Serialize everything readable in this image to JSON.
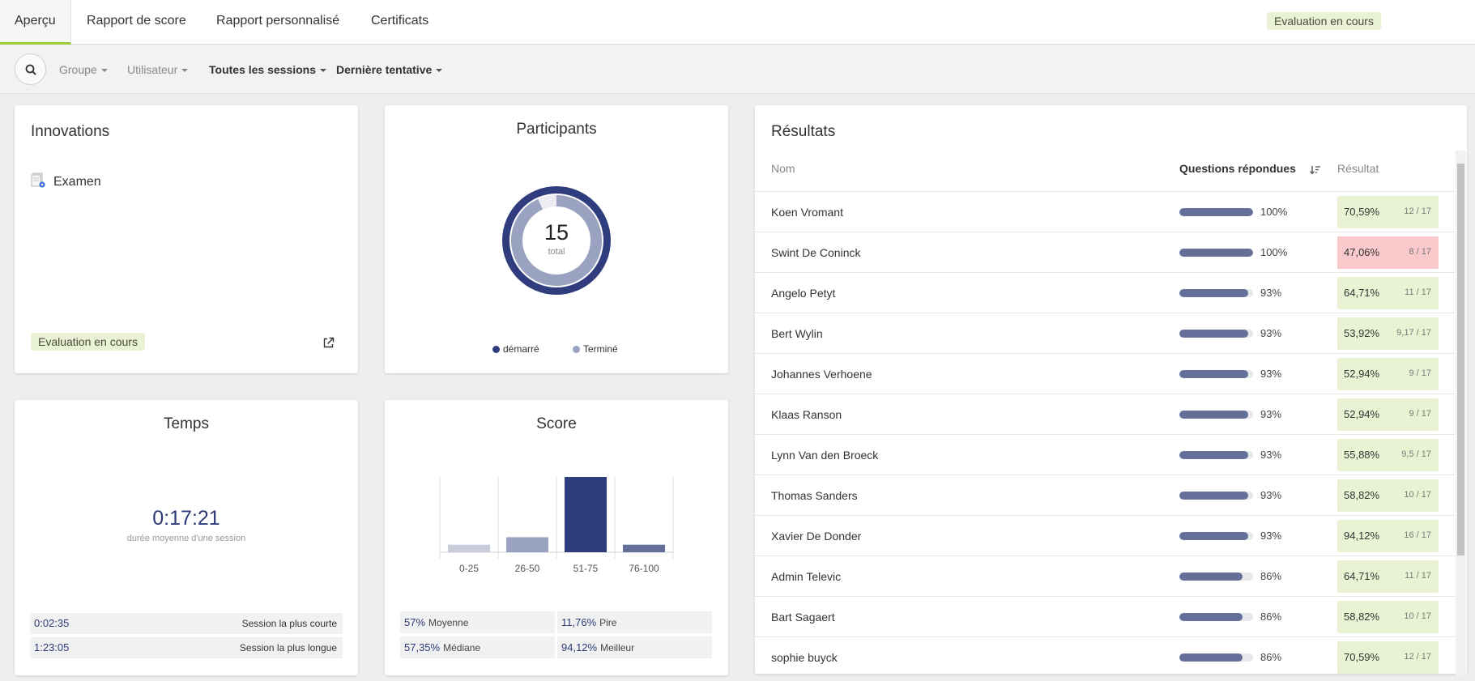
{
  "tabs": [
    {
      "label": "Aperçu"
    },
    {
      "label": "Rapport de score"
    },
    {
      "label": "Rapport personnalisé"
    },
    {
      "label": "Certificats"
    }
  ],
  "status": "Evaluation en cours",
  "filters": {
    "group": "Groupe",
    "user": "Utilisateur",
    "sessions": "Toutes les sessions",
    "attempt": "Dernière tentative"
  },
  "innovations": {
    "title": "Innovations",
    "item": "Examen",
    "status": "Evaluation en cours"
  },
  "participants": {
    "title": "Participants",
    "total": "15",
    "total_label": "total",
    "legend": [
      {
        "label": "démarré",
        "color": "#2f3d7e"
      },
      {
        "label": "Terminé",
        "color": "#9aa2c1"
      }
    ]
  },
  "temps": {
    "title": "Temps",
    "average": "0:17:21",
    "average_label": "durée moyenne d'une session",
    "shortest_value": "0:02:35",
    "shortest_label": "Session la plus courte",
    "longest_value": "1:23:05",
    "longest_label": "Session la plus longue"
  },
  "score": {
    "title": "Score",
    "stats": [
      {
        "value": "57%",
        "label": "Moyenne"
      },
      {
        "value": "11,76%",
        "label": "Pire"
      },
      {
        "value": "57,35%",
        "label": "Médiane"
      },
      {
        "value": "94,12%",
        "label": "Meilleur"
      }
    ]
  },
  "chart_data": [
    {
      "type": "pie",
      "title": "Participants",
      "series": [
        {
          "name": "démarré",
          "values": [
            15
          ]
        },
        {
          "name": "Terminé",
          "values": [
            14
          ]
        }
      ],
      "center_label": "15 total"
    },
    {
      "type": "bar",
      "title": "Score",
      "categories": [
        "0-25",
        "26-50",
        "51-75",
        "76-100"
      ],
      "values": [
        1,
        2,
        10,
        1
      ],
      "colors": [
        "#c8ccdb",
        "#9aa2c1",
        "#2f3d7e",
        "#65709a"
      ]
    }
  ],
  "results": {
    "title": "Résultats",
    "col_name": "Nom",
    "col_questions": "Questions répondues",
    "col_result": "Résultat",
    "rows": [
      {
        "name": "Koen Vromant",
        "answered": 1.0,
        "answered_label": "100%",
        "result": "70,59%",
        "score": "12 / 17",
        "fail": false
      },
      {
        "name": "Swint De Coninck",
        "answered": 1.0,
        "answered_label": "100%",
        "result": "47,06%",
        "score": "8 / 17",
        "fail": true
      },
      {
        "name": "Angelo Petyt",
        "answered": 0.93,
        "answered_label": "93%",
        "result": "64,71%",
        "score": "11 / 17",
        "fail": false
      },
      {
        "name": "Bert Wylin",
        "answered": 0.93,
        "answered_label": "93%",
        "result": "53,92%",
        "score": "9,17 / 17",
        "fail": false
      },
      {
        "name": "Johannes Verhoene",
        "answered": 0.93,
        "answered_label": "93%",
        "result": "52,94%",
        "score": "9 / 17",
        "fail": false
      },
      {
        "name": "Klaas Ranson",
        "answered": 0.93,
        "answered_label": "93%",
        "result": "52,94%",
        "score": "9 / 17",
        "fail": false
      },
      {
        "name": "Lynn Van den Broeck",
        "answered": 0.93,
        "answered_label": "93%",
        "result": "55,88%",
        "score": "9,5 / 17",
        "fail": false
      },
      {
        "name": "Thomas Sanders",
        "answered": 0.93,
        "answered_label": "93%",
        "result": "58,82%",
        "score": "10 / 17",
        "fail": false
      },
      {
        "name": "Xavier De Donder",
        "answered": 0.93,
        "answered_label": "93%",
        "result": "94,12%",
        "score": "16 / 17",
        "fail": false
      },
      {
        "name": "Admin Televic",
        "answered": 0.86,
        "answered_label": "86%",
        "result": "64,71%",
        "score": "11 / 17",
        "fail": false
      },
      {
        "name": "Bart Sagaert",
        "answered": 0.86,
        "answered_label": "86%",
        "result": "58,82%",
        "score": "10 / 17",
        "fail": false
      },
      {
        "name": "sophie buyck",
        "answered": 0.86,
        "answered_label": "86%",
        "result": "70,59%",
        "score": "12 / 17",
        "fail": false
      }
    ]
  }
}
